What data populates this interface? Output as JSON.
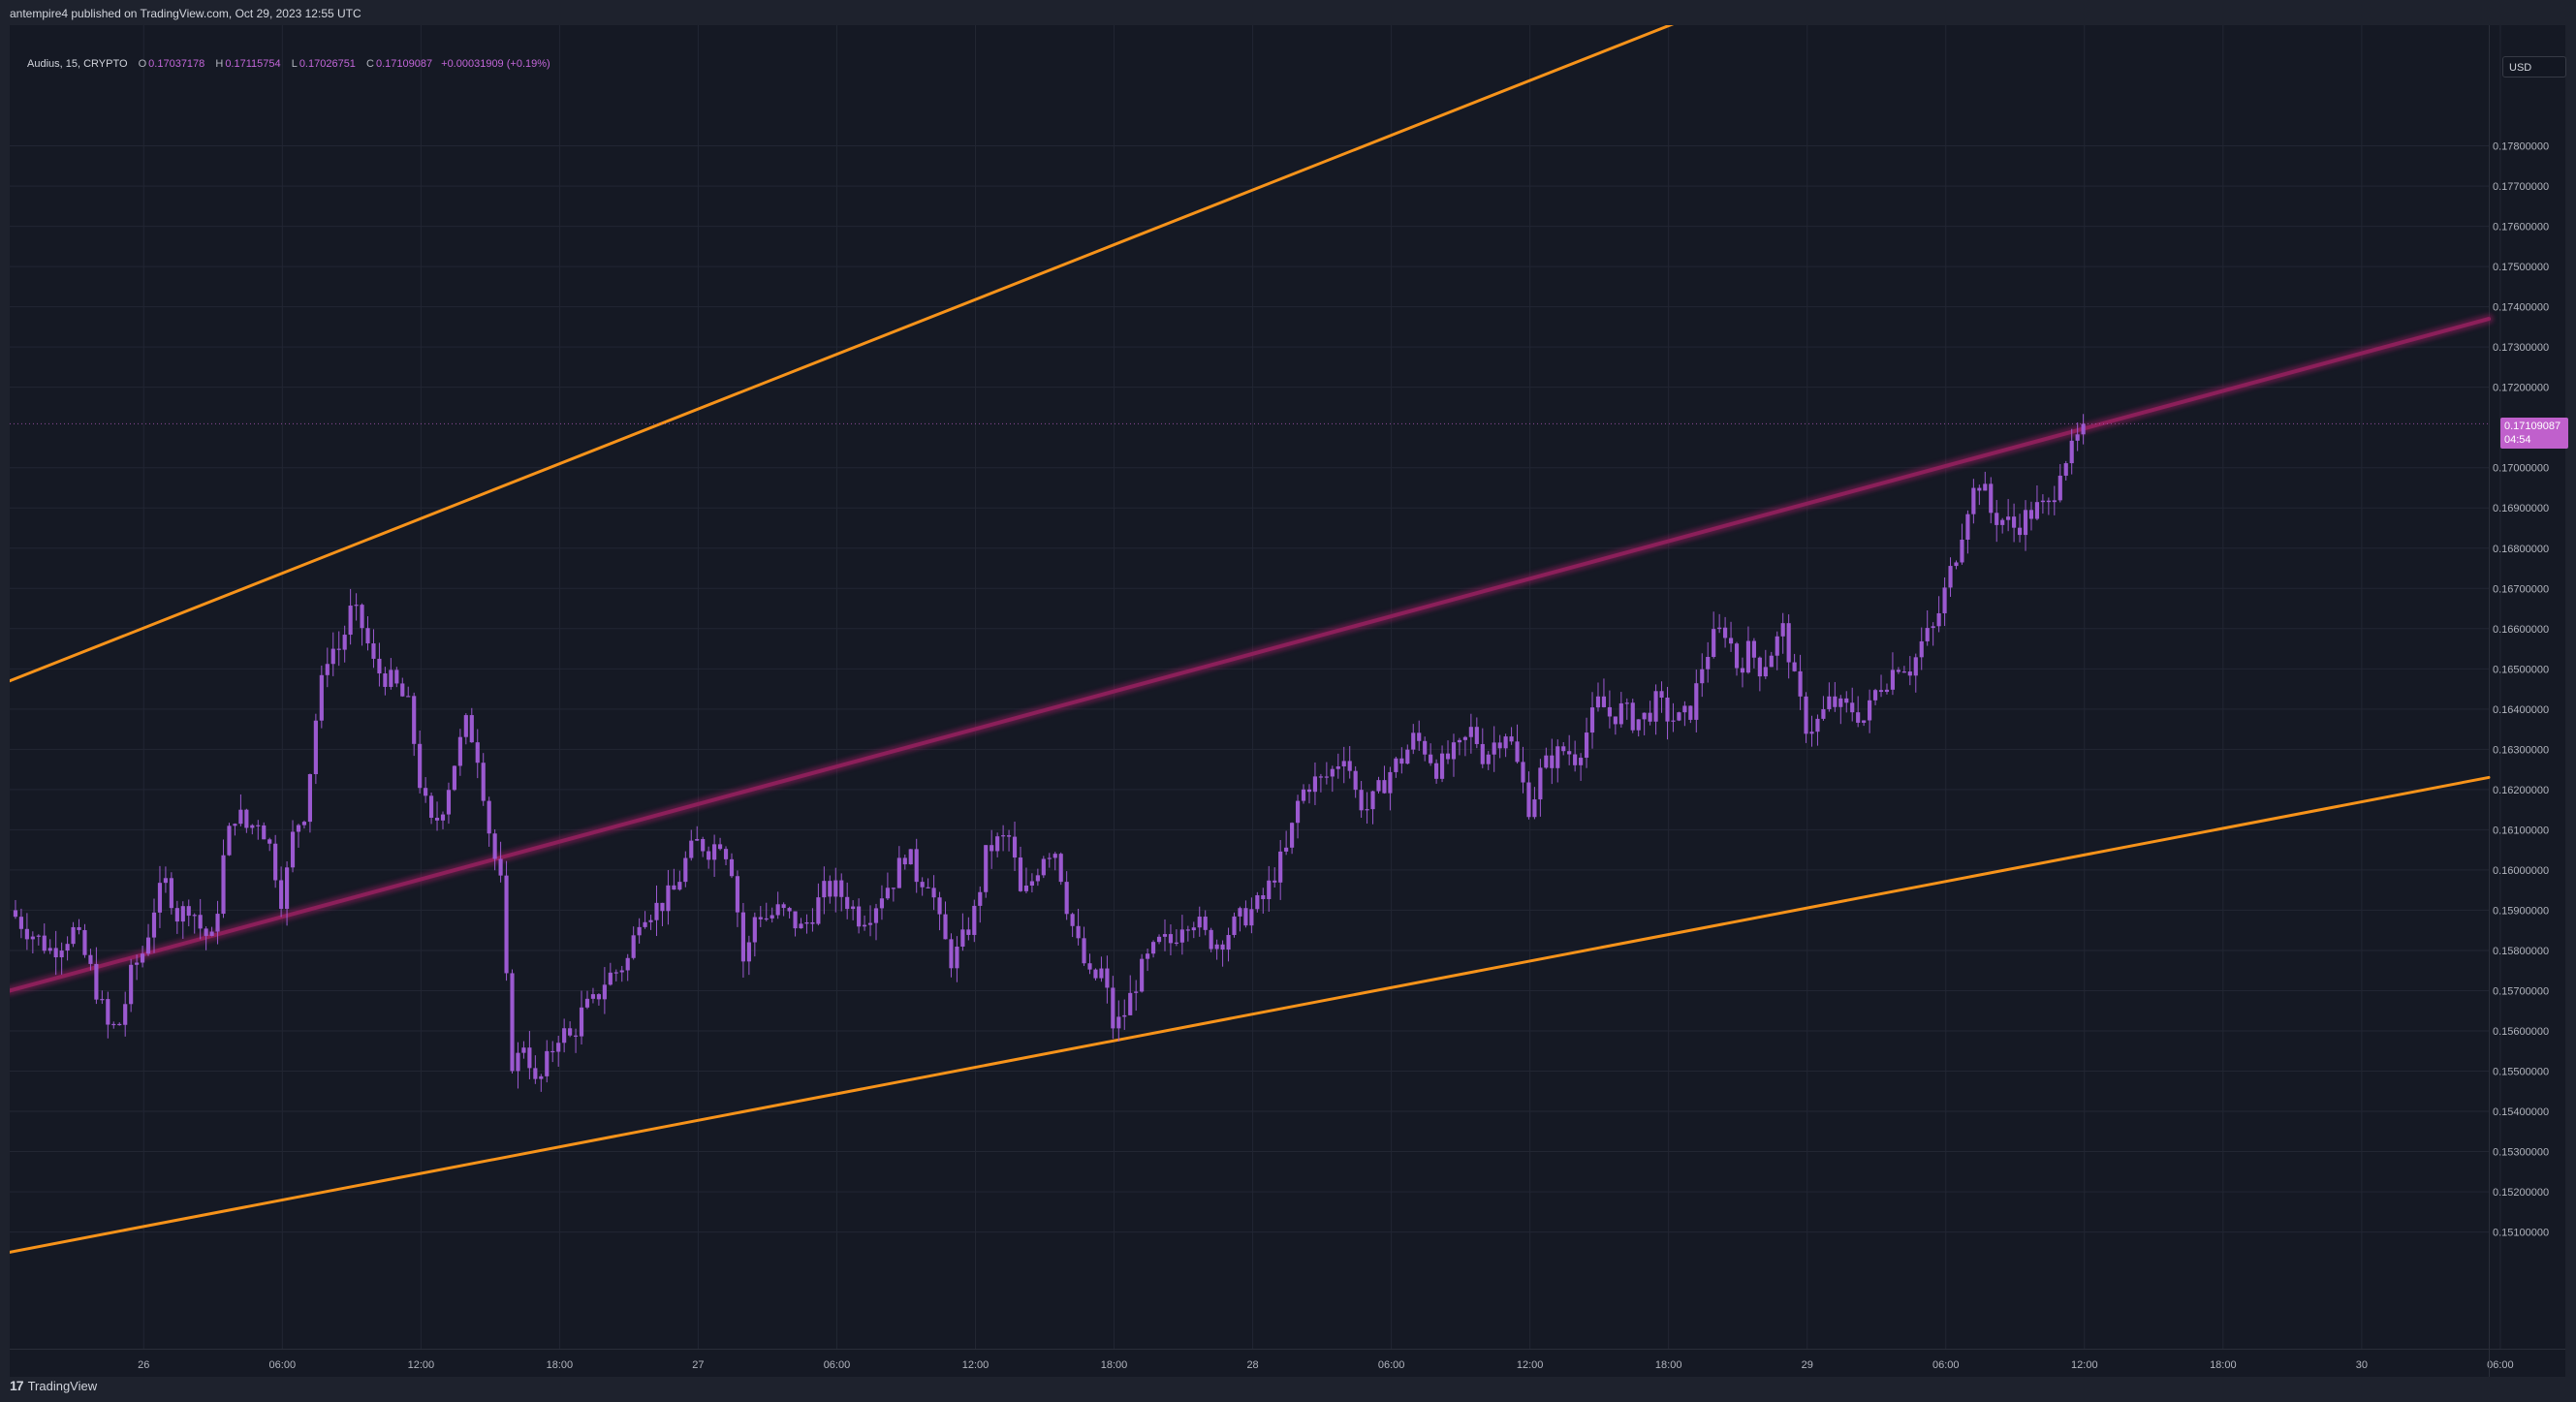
{
  "header": {
    "publisher_text": "antempire4 published on TradingView.com, Oct 29, 2023 12:55 UTC"
  },
  "legend": {
    "symbol": "Audius, 15, CRYPTO",
    "open_label": "O",
    "open": "0.17037178",
    "high_label": "H",
    "high": "0.17115754",
    "low_label": "L",
    "low": "0.17026751",
    "close_label": "C",
    "close": "0.17109087",
    "change": "+0.00031909 (+0.19%)"
  },
  "price_axis": {
    "currency": "USD",
    "last_price": "0.17109087",
    "countdown": "04:54"
  },
  "footer": {
    "brand": "TradingView"
  },
  "colors": {
    "background": "#151924",
    "outer_background": "#1e222d",
    "candle": "#9b59d0",
    "channel_lines": "#f7931a",
    "mid_line": "#8c1f5a",
    "price_tag": "#c060cc",
    "grid": "#222633"
  },
  "chart_data": {
    "type": "candlestick",
    "title": "",
    "symbol": "Audius, 15, CRYPTO",
    "interval": "15",
    "y_axis": {
      "ticks": [
        "0.17800000",
        "0.17700000",
        "0.17600000",
        "0.17500000",
        "0.17400000",
        "0.17300000",
        "0.17200000",
        "0.17000000",
        "0.16900000",
        "0.16800000",
        "0.16700000",
        "0.16600000",
        "0.16500000",
        "0.16400000",
        "0.16300000",
        "0.16200000",
        "0.16100000",
        "0.16000000",
        "0.15900000",
        "0.15800000",
        "0.15700000",
        "0.15600000",
        "0.15500000",
        "0.15400000",
        "0.15300000",
        "0.15200000",
        "0.15100000"
      ],
      "ylim": [
        0.1481,
        0.181
      ]
    },
    "x_axis": {
      "ticks": [
        {
          "label": "26",
          "hour": 0
        },
        {
          "label": "06:00",
          "hour": 6
        },
        {
          "label": "12:00",
          "hour": 12
        },
        {
          "label": "18:00",
          "hour": 18
        },
        {
          "label": "27",
          "hour": 24
        },
        {
          "label": "06:00",
          "hour": 30
        },
        {
          "label": "12:00",
          "hour": 36
        },
        {
          "label": "18:00",
          "hour": 42
        },
        {
          "label": "28",
          "hour": 48
        },
        {
          "label": "06:00",
          "hour": 54
        },
        {
          "label": "12:00",
          "hour": 60
        },
        {
          "label": "18:00",
          "hour": 66
        },
        {
          "label": "29",
          "hour": 72
        },
        {
          "label": "06:00",
          "hour": 78
        },
        {
          "label": "12:00",
          "hour": 84
        },
        {
          "label": "18:00",
          "hour": 90
        },
        {
          "label": "30",
          "hour": 96
        },
        {
          "label": "06:00",
          "hour": 102
        }
      ],
      "xlim": [
        -5.8,
        101.5
      ]
    },
    "price_line": 0.17109087,
    "trend_lines": [
      {
        "name": "upper-channel",
        "color": "#f7931a",
        "points": [
          [
            -5.8,
            0.1647
          ],
          [
            66.5,
            0.1811
          ]
        ]
      },
      {
        "name": "mid-line",
        "color": "#8c1f5a",
        "points": [
          [
            -5.8,
            0.157
          ],
          [
            101.5,
            0.1737
          ]
        ]
      },
      {
        "name": "lower-channel",
        "color": "#f7931a",
        "points": [
          [
            -5.8,
            0.1505
          ],
          [
            101.5,
            0.1623
          ]
        ]
      }
    ],
    "price_path": [
      [
        -5.8,
        0.159
      ],
      [
        -5.0,
        0.1585
      ],
      [
        -4.0,
        0.158
      ],
      [
        -3.0,
        0.1585
      ],
      [
        -2.3,
        0.1575
      ],
      [
        -1.5,
        0.156
      ],
      [
        -1.0,
        0.1562
      ],
      [
        -0.5,
        0.1575
      ],
      [
        0.0,
        0.158
      ],
      [
        0.5,
        0.1592
      ],
      [
        1.0,
        0.1597
      ],
      [
        1.5,
        0.1588
      ],
      [
        2.0,
        0.1592
      ],
      [
        2.5,
        0.1585
      ],
      [
        3.0,
        0.1582
      ],
      [
        3.5,
        0.1605
      ],
      [
        4.0,
        0.1615
      ],
      [
        4.5,
        0.161
      ],
      [
        5.0,
        0.1613
      ],
      [
        5.5,
        0.1605
      ],
      [
        6.0,
        0.1592
      ],
      [
        6.5,
        0.161
      ],
      [
        7.0,
        0.1615
      ],
      [
        7.5,
        0.164
      ],
      [
        8.0,
        0.1655
      ],
      [
        8.5,
        0.1655
      ],
      [
        9.0,
        0.1665
      ],
      [
        9.5,
        0.166
      ],
      [
        10.0,
        0.165
      ],
      [
        10.5,
        0.1648
      ],
      [
        11.0,
        0.1645
      ],
      [
        11.5,
        0.164
      ],
      [
        12.0,
        0.162
      ],
      [
        12.5,
        0.161
      ],
      [
        13.0,
        0.1617
      ],
      [
        13.5,
        0.1628
      ],
      [
        14.0,
        0.1637
      ],
      [
        14.5,
        0.1628
      ],
      [
        15.0,
        0.1608
      ],
      [
        15.5,
        0.1595
      ],
      [
        15.8,
        0.156
      ],
      [
        16.0,
        0.155
      ],
      [
        16.5,
        0.1558
      ],
      [
        17.0,
        0.1545
      ],
      [
        17.5,
        0.1553
      ],
      [
        18.0,
        0.156
      ],
      [
        18.5,
        0.1558
      ],
      [
        19.0,
        0.1565
      ],
      [
        19.5,
        0.1567
      ],
      [
        20.0,
        0.1573
      ],
      [
        20.5,
        0.1575
      ],
      [
        21.0,
        0.1578
      ],
      [
        21.5,
        0.159
      ],
      [
        22.0,
        0.159
      ],
      [
        22.5,
        0.1592
      ],
      [
        23.0,
        0.1595
      ],
      [
        23.5,
        0.1603
      ],
      [
        24.0,
        0.1607
      ],
      [
        24.5,
        0.1605
      ],
      [
        25.0,
        0.1608
      ],
      [
        25.5,
        0.16
      ],
      [
        26.0,
        0.1575
      ],
      [
        26.5,
        0.159
      ],
      [
        27.0,
        0.1588
      ],
      [
        27.5,
        0.159
      ],
      [
        28.0,
        0.1588
      ],
      [
        28.5,
        0.1585
      ],
      [
        29.0,
        0.159
      ],
      [
        29.5,
        0.1595
      ],
      [
        30.0,
        0.1595
      ],
      [
        30.5,
        0.1592
      ],
      [
        31.0,
        0.1588
      ],
      [
        31.5,
        0.159
      ],
      [
        32.0,
        0.1595
      ],
      [
        32.5,
        0.1598
      ],
      [
        33.0,
        0.1605
      ],
      [
        33.5,
        0.1598
      ],
      [
        34.0,
        0.1598
      ],
      [
        34.5,
        0.1585
      ],
      [
        35.0,
        0.1577
      ],
      [
        35.5,
        0.1583
      ],
      [
        36.0,
        0.159
      ],
      [
        36.5,
        0.1605
      ],
      [
        37.0,
        0.1607
      ],
      [
        37.5,
        0.1608
      ],
      [
        38.0,
        0.1592
      ],
      [
        38.5,
        0.1598
      ],
      [
        39.0,
        0.1605
      ],
      [
        39.5,
        0.1605
      ],
      [
        40.0,
        0.159
      ],
      [
        40.5,
        0.158
      ],
      [
        41.0,
        0.1572
      ],
      [
        41.5,
        0.1575
      ],
      [
        42.0,
        0.156
      ],
      [
        42.5,
        0.1565
      ],
      [
        43.0,
        0.1573
      ],
      [
        43.5,
        0.1578
      ],
      [
        44.0,
        0.1582
      ],
      [
        44.5,
        0.1582
      ],
      [
        45.0,
        0.1588
      ],
      [
        45.5,
        0.1588
      ],
      [
        46.0,
        0.1583
      ],
      [
        46.5,
        0.1582
      ],
      [
        47.0,
        0.1585
      ],
      [
        47.5,
        0.1588
      ],
      [
        48.0,
        0.159
      ],
      [
        48.5,
        0.1593
      ],
      [
        49.0,
        0.16
      ],
      [
        49.5,
        0.1605
      ],
      [
        50.0,
        0.1618
      ],
      [
        50.5,
        0.1622
      ],
      [
        51.0,
        0.1622
      ],
      [
        51.5,
        0.1625
      ],
      [
        52.0,
        0.163
      ],
      [
        52.5,
        0.1618
      ],
      [
        53.0,
        0.1615
      ],
      [
        53.5,
        0.162
      ],
      [
        54.0,
        0.1625
      ],
      [
        54.5,
        0.1628
      ],
      [
        55.0,
        0.1633
      ],
      [
        55.5,
        0.163
      ],
      [
        56.0,
        0.1625
      ],
      [
        56.5,
        0.1628
      ],
      [
        57.0,
        0.163
      ],
      [
        57.5,
        0.1635
      ],
      [
        58.0,
        0.1628
      ],
      [
        58.5,
        0.1632
      ],
      [
        59.0,
        0.1635
      ],
      [
        59.5,
        0.1625
      ],
      [
        60.0,
        0.1615
      ],
      [
        60.5,
        0.1625
      ],
      [
        61.0,
        0.1628
      ],
      [
        61.5,
        0.163
      ],
      [
        62.0,
        0.1628
      ],
      [
        62.5,
        0.1635
      ],
      [
        63.0,
        0.1642
      ],
      [
        63.5,
        0.1638
      ],
      [
        64.0,
        0.164
      ],
      [
        64.5,
        0.1637
      ],
      [
        65.0,
        0.1638
      ],
      [
        65.5,
        0.1642
      ],
      [
        66.0,
        0.1638
      ],
      [
        66.5,
        0.1637
      ],
      [
        67.0,
        0.164
      ],
      [
        67.5,
        0.1652
      ],
      [
        68.0,
        0.1658
      ],
      [
        68.5,
        0.166
      ],
      [
        69.0,
        0.165
      ],
      [
        69.5,
        0.1655
      ],
      [
        70.0,
        0.165
      ],
      [
        70.5,
        0.1655
      ],
      [
        71.0,
        0.166
      ],
      [
        71.5,
        0.1645
      ],
      [
        72.0,
        0.1635
      ],
      [
        72.5,
        0.1637
      ],
      [
        73.0,
        0.1642
      ],
      [
        73.5,
        0.164
      ],
      [
        74.0,
        0.164
      ],
      [
        74.5,
        0.1637
      ],
      [
        75.0,
        0.1645
      ],
      [
        75.5,
        0.1648
      ],
      [
        76.0,
        0.1652
      ],
      [
        76.5,
        0.165
      ],
      [
        77.0,
        0.1657
      ],
      [
        77.5,
        0.166
      ],
      [
        78.0,
        0.167
      ],
      [
        78.5,
        0.168
      ],
      [
        79.0,
        0.1692
      ],
      [
        79.5,
        0.1697
      ],
      [
        80.0,
        0.1688
      ],
      [
        80.5,
        0.1687
      ],
      [
        81.0,
        0.1685
      ],
      [
        81.5,
        0.1688
      ],
      [
        82.0,
        0.169
      ],
      [
        82.5,
        0.169
      ],
      [
        83.0,
        0.1702
      ],
      [
        83.5,
        0.1704
      ],
      [
        84.0,
        0.1711
      ]
    ]
  }
}
